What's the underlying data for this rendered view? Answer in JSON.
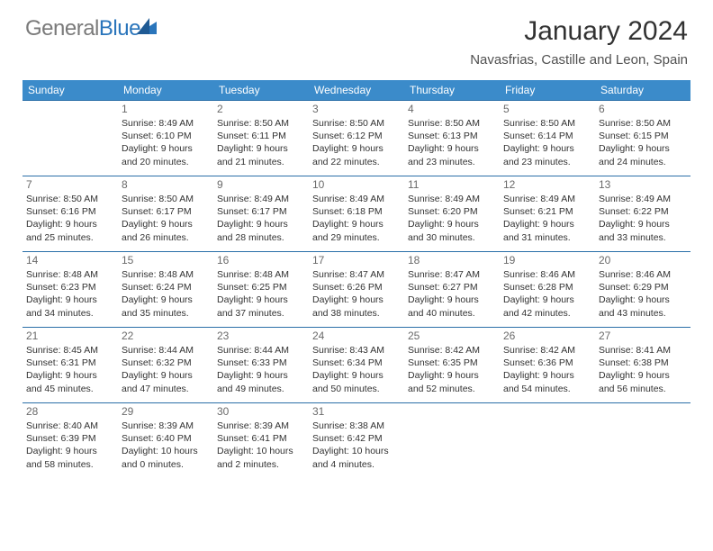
{
  "brand": {
    "part1": "General",
    "part2": "Blue"
  },
  "title": "January 2024",
  "location": "Navasfrias, Castille and Leon, Spain",
  "colors": {
    "header_bg": "#3b8bca",
    "header_text": "#ffffff",
    "row_border": "#2a6fa8",
    "logo_gray": "#7a7a7a",
    "logo_blue": "#2a75bb",
    "body_text": "#323232",
    "daynum_text": "#6a6a6a",
    "background": "#ffffff"
  },
  "typography": {
    "title_fontsize": 30,
    "location_fontsize": 15,
    "header_fontsize": 12,
    "daynum_fontsize": 12,
    "cell_fontsize": 10.5,
    "logo_fontsize": 24
  },
  "weekdays": [
    "Sunday",
    "Monday",
    "Tuesday",
    "Wednesday",
    "Thursday",
    "Friday",
    "Saturday"
  ],
  "weeks": [
    [
      null,
      {
        "n": "1",
        "sr": "8:49 AM",
        "ss": "6:10 PM",
        "dh": "9",
        "dm": "20"
      },
      {
        "n": "2",
        "sr": "8:50 AM",
        "ss": "6:11 PM",
        "dh": "9",
        "dm": "21"
      },
      {
        "n": "3",
        "sr": "8:50 AM",
        "ss": "6:12 PM",
        "dh": "9",
        "dm": "22"
      },
      {
        "n": "4",
        "sr": "8:50 AM",
        "ss": "6:13 PM",
        "dh": "9",
        "dm": "23"
      },
      {
        "n": "5",
        "sr": "8:50 AM",
        "ss": "6:14 PM",
        "dh": "9",
        "dm": "23"
      },
      {
        "n": "6",
        "sr": "8:50 AM",
        "ss": "6:15 PM",
        "dh": "9",
        "dm": "24"
      }
    ],
    [
      {
        "n": "7",
        "sr": "8:50 AM",
        "ss": "6:16 PM",
        "dh": "9",
        "dm": "25"
      },
      {
        "n": "8",
        "sr": "8:50 AM",
        "ss": "6:17 PM",
        "dh": "9",
        "dm": "26"
      },
      {
        "n": "9",
        "sr": "8:49 AM",
        "ss": "6:17 PM",
        "dh": "9",
        "dm": "28"
      },
      {
        "n": "10",
        "sr": "8:49 AM",
        "ss": "6:18 PM",
        "dh": "9",
        "dm": "29"
      },
      {
        "n": "11",
        "sr": "8:49 AM",
        "ss": "6:20 PM",
        "dh": "9",
        "dm": "30"
      },
      {
        "n": "12",
        "sr": "8:49 AM",
        "ss": "6:21 PM",
        "dh": "9",
        "dm": "31"
      },
      {
        "n": "13",
        "sr": "8:49 AM",
        "ss": "6:22 PM",
        "dh": "9",
        "dm": "33"
      }
    ],
    [
      {
        "n": "14",
        "sr": "8:48 AM",
        "ss": "6:23 PM",
        "dh": "9",
        "dm": "34"
      },
      {
        "n": "15",
        "sr": "8:48 AM",
        "ss": "6:24 PM",
        "dh": "9",
        "dm": "35"
      },
      {
        "n": "16",
        "sr": "8:48 AM",
        "ss": "6:25 PM",
        "dh": "9",
        "dm": "37"
      },
      {
        "n": "17",
        "sr": "8:47 AM",
        "ss": "6:26 PM",
        "dh": "9",
        "dm": "38"
      },
      {
        "n": "18",
        "sr": "8:47 AM",
        "ss": "6:27 PM",
        "dh": "9",
        "dm": "40"
      },
      {
        "n": "19",
        "sr": "8:46 AM",
        "ss": "6:28 PM",
        "dh": "9",
        "dm": "42"
      },
      {
        "n": "20",
        "sr": "8:46 AM",
        "ss": "6:29 PM",
        "dh": "9",
        "dm": "43"
      }
    ],
    [
      {
        "n": "21",
        "sr": "8:45 AM",
        "ss": "6:31 PM",
        "dh": "9",
        "dm": "45"
      },
      {
        "n": "22",
        "sr": "8:44 AM",
        "ss": "6:32 PM",
        "dh": "9",
        "dm": "47"
      },
      {
        "n": "23",
        "sr": "8:44 AM",
        "ss": "6:33 PM",
        "dh": "9",
        "dm": "49"
      },
      {
        "n": "24",
        "sr": "8:43 AM",
        "ss": "6:34 PM",
        "dh": "9",
        "dm": "50"
      },
      {
        "n": "25",
        "sr": "8:42 AM",
        "ss": "6:35 PM",
        "dh": "9",
        "dm": "52"
      },
      {
        "n": "26",
        "sr": "8:42 AM",
        "ss": "6:36 PM",
        "dh": "9",
        "dm": "54"
      },
      {
        "n": "27",
        "sr": "8:41 AM",
        "ss": "6:38 PM",
        "dh": "9",
        "dm": "56"
      }
    ],
    [
      {
        "n": "28",
        "sr": "8:40 AM",
        "ss": "6:39 PM",
        "dh": "9",
        "dm": "58"
      },
      {
        "n": "29",
        "sr": "8:39 AM",
        "ss": "6:40 PM",
        "dh": "10",
        "dm": "0"
      },
      {
        "n": "30",
        "sr": "8:39 AM",
        "ss": "6:41 PM",
        "dh": "10",
        "dm": "2"
      },
      {
        "n": "31",
        "sr": "8:38 AM",
        "ss": "6:42 PM",
        "dh": "10",
        "dm": "4"
      },
      null,
      null,
      null
    ]
  ],
  "labels": {
    "sunrise": "Sunrise:",
    "sunset": "Sunset:",
    "daylight": "Daylight:",
    "hours": "hours",
    "and": "and",
    "minutes": "minutes."
  }
}
